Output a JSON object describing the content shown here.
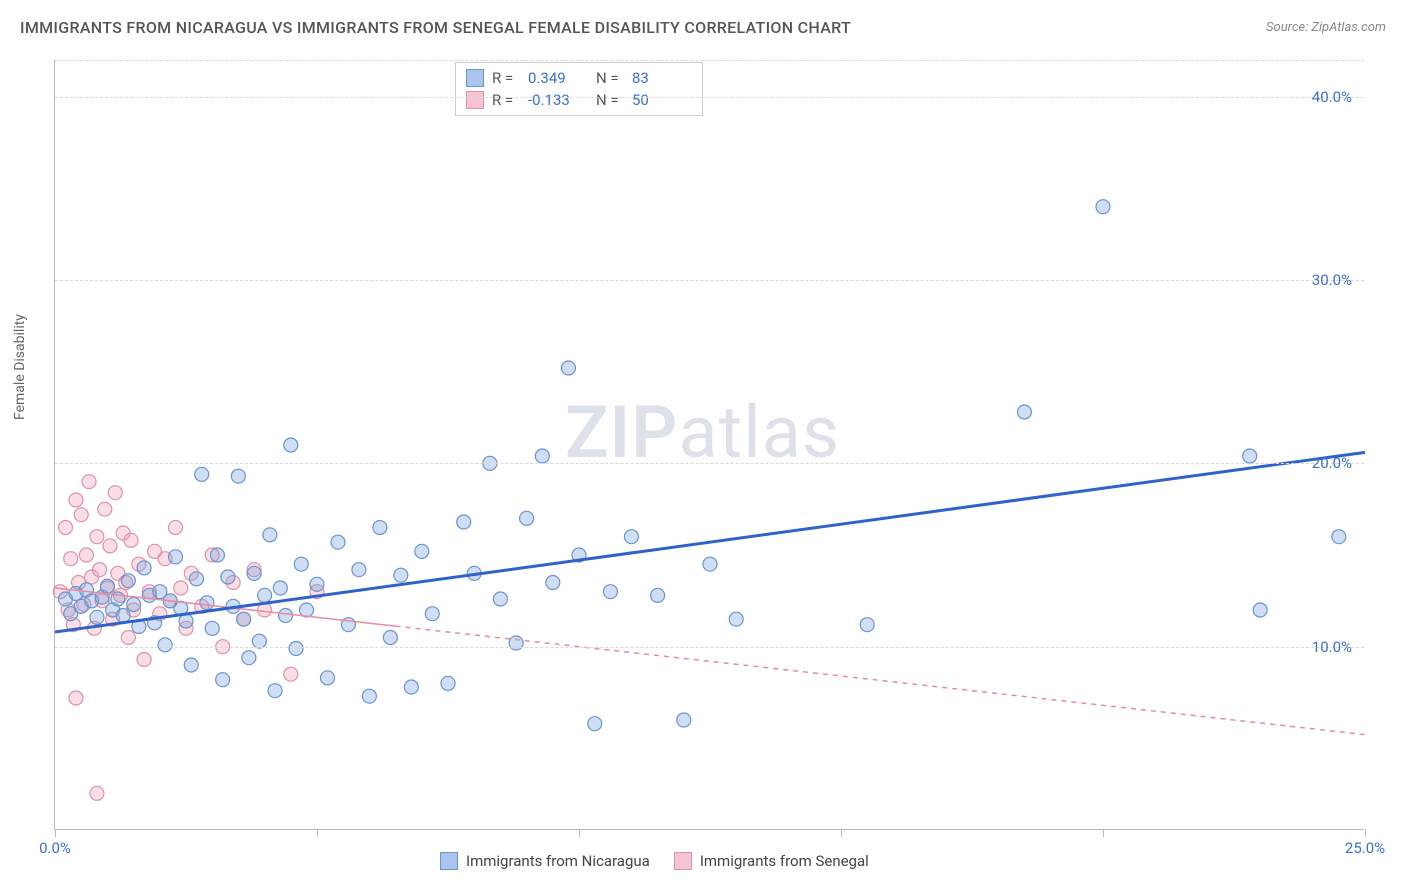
{
  "title": "IMMIGRANTS FROM NICARAGUA VS IMMIGRANTS FROM SENEGAL FEMALE DISABILITY CORRELATION CHART",
  "source": "Source: ZipAtlas.com",
  "y_axis_label": "Female Disability",
  "watermark_bold": "ZIP",
  "watermark_rest": "atlas",
  "chart": {
    "type": "scatter",
    "xlim": [
      0,
      25
    ],
    "ylim": [
      0,
      42
    ],
    "x_ticks": [
      0,
      5,
      10,
      15,
      20,
      25
    ],
    "x_tick_labels": {
      "0": "0.0%",
      "25": "25.0%"
    },
    "y_grid": [
      10,
      20,
      30,
      40
    ],
    "y_tick_labels": {
      "10": "10.0%",
      "20": "20.0%",
      "30": "30.0%",
      "40": "40.0%"
    },
    "background_color": "#ffffff",
    "grid_color": "#d8d8d8",
    "axis_color": "#bbbbbb",
    "marker_radius": 7,
    "marker_stroke_width": 1.2,
    "series": [
      {
        "name": "Immigrants from Nicaragua",
        "fill": "rgba(120,160,220,0.35)",
        "stroke": "#6a94cf",
        "swatch_fill": "#aac4eb",
        "swatch_border": "#6a94cf",
        "r": "0.349",
        "n": "83",
        "trend": {
          "x1": 0,
          "y1": 10.8,
          "x2": 25,
          "y2": 20.6,
          "color": "#2f63c9",
          "width": 3,
          "dash": ""
        },
        "points": [
          [
            0.2,
            12.6
          ],
          [
            0.3,
            11.8
          ],
          [
            0.4,
            12.9
          ],
          [
            0.5,
            12.2
          ],
          [
            0.6,
            13.1
          ],
          [
            0.7,
            12.5
          ],
          [
            0.8,
            11.6
          ],
          [
            0.9,
            12.7
          ],
          [
            1.0,
            13.3
          ],
          [
            1.1,
            12.0
          ],
          [
            1.2,
            12.6
          ],
          [
            1.3,
            11.7
          ],
          [
            1.4,
            13.6
          ],
          [
            1.5,
            12.3
          ],
          [
            1.6,
            11.1
          ],
          [
            1.7,
            14.3
          ],
          [
            1.8,
            12.8
          ],
          [
            1.9,
            11.3
          ],
          [
            2.0,
            13.0
          ],
          [
            2.1,
            10.1
          ],
          [
            2.2,
            12.5
          ],
          [
            2.3,
            14.9
          ],
          [
            2.4,
            12.1
          ],
          [
            2.5,
            11.4
          ],
          [
            2.6,
            9.0
          ],
          [
            2.7,
            13.7
          ],
          [
            2.8,
            19.4
          ],
          [
            2.9,
            12.4
          ],
          [
            3.0,
            11.0
          ],
          [
            3.1,
            15.0
          ],
          [
            3.2,
            8.2
          ],
          [
            3.3,
            13.8
          ],
          [
            3.4,
            12.2
          ],
          [
            3.5,
            19.3
          ],
          [
            3.6,
            11.5
          ],
          [
            3.7,
            9.4
          ],
          [
            3.8,
            14.0
          ],
          [
            3.9,
            10.3
          ],
          [
            4.0,
            12.8
          ],
          [
            4.1,
            16.1
          ],
          [
            4.2,
            7.6
          ],
          [
            4.3,
            13.2
          ],
          [
            4.4,
            11.7
          ],
          [
            4.5,
            21.0
          ],
          [
            4.6,
            9.9
          ],
          [
            4.7,
            14.5
          ],
          [
            4.8,
            12.0
          ],
          [
            5.0,
            13.4
          ],
          [
            5.2,
            8.3
          ],
          [
            5.4,
            15.7
          ],
          [
            5.6,
            11.2
          ],
          [
            5.8,
            14.2
          ],
          [
            6.0,
            7.3
          ],
          [
            6.2,
            16.5
          ],
          [
            6.4,
            10.5
          ],
          [
            6.6,
            13.9
          ],
          [
            6.8,
            7.8
          ],
          [
            7.0,
            15.2
          ],
          [
            7.2,
            11.8
          ],
          [
            7.5,
            8.0
          ],
          [
            7.8,
            16.8
          ],
          [
            8.0,
            14.0
          ],
          [
            8.3,
            20.0
          ],
          [
            8.5,
            12.6
          ],
          [
            8.8,
            10.2
          ],
          [
            9.0,
            17.0
          ],
          [
            9.3,
            20.4
          ],
          [
            9.5,
            13.5
          ],
          [
            9.8,
            25.2
          ],
          [
            10.0,
            15.0
          ],
          [
            10.3,
            5.8
          ],
          [
            10.6,
            13.0
          ],
          [
            11.0,
            16.0
          ],
          [
            11.5,
            12.8
          ],
          [
            12.0,
            6.0
          ],
          [
            12.5,
            14.5
          ],
          [
            13.0,
            11.5
          ],
          [
            15.5,
            11.2
          ],
          [
            18.5,
            22.8
          ],
          [
            20.0,
            34.0
          ],
          [
            22.8,
            20.4
          ],
          [
            23.0,
            12.0
          ],
          [
            24.5,
            16.0
          ]
        ]
      },
      {
        "name": "Immigrants from Senegal",
        "fill": "rgba(240,160,180,0.35)",
        "stroke": "#e091a6",
        "swatch_fill": "#f6c3d0",
        "swatch_border": "#e091a6",
        "r": "-0.133",
        "n": "50",
        "trend": {
          "x1": 0,
          "y1": 13.2,
          "x2": 25,
          "y2": 5.2,
          "color": "#e88aa0",
          "width": 1.5,
          "dash": "",
          "dash_after_x": 6.5,
          "dash_pattern": "5,5"
        },
        "points": [
          [
            0.1,
            13.0
          ],
          [
            0.2,
            16.5
          ],
          [
            0.25,
            12.0
          ],
          [
            0.3,
            14.8
          ],
          [
            0.35,
            11.2
          ],
          [
            0.4,
            18.0
          ],
          [
            0.45,
            13.5
          ],
          [
            0.5,
            17.2
          ],
          [
            0.55,
            12.3
          ],
          [
            0.6,
            15.0
          ],
          [
            0.65,
            19.0
          ],
          [
            0.7,
            13.8
          ],
          [
            0.75,
            11.0
          ],
          [
            0.8,
            16.0
          ],
          [
            0.85,
            14.2
          ],
          [
            0.9,
            12.5
          ],
          [
            0.95,
            17.5
          ],
          [
            1.0,
            13.2
          ],
          [
            1.05,
            15.5
          ],
          [
            1.1,
            11.5
          ],
          [
            1.15,
            18.4
          ],
          [
            1.2,
            14.0
          ],
          [
            1.25,
            12.8
          ],
          [
            1.3,
            16.2
          ],
          [
            1.35,
            13.5
          ],
          [
            1.4,
            10.5
          ],
          [
            1.45,
            15.8
          ],
          [
            1.5,
            12.0
          ],
          [
            1.6,
            14.5
          ],
          [
            1.7,
            9.3
          ],
          [
            1.8,
            13.0
          ],
          [
            1.9,
            15.2
          ],
          [
            2.0,
            11.8
          ],
          [
            2.1,
            14.8
          ],
          [
            2.2,
            12.5
          ],
          [
            2.3,
            16.5
          ],
          [
            2.4,
            13.2
          ],
          [
            2.5,
            11.0
          ],
          [
            2.6,
            14.0
          ],
          [
            2.8,
            12.2
          ],
          [
            3.0,
            15.0
          ],
          [
            3.2,
            10.0
          ],
          [
            3.4,
            13.5
          ],
          [
            3.6,
            11.5
          ],
          [
            3.8,
            14.2
          ],
          [
            4.0,
            12.0
          ],
          [
            4.5,
            8.5
          ],
          [
            5.0,
            13.0
          ],
          [
            0.8,
            2.0
          ],
          [
            0.4,
            7.2
          ]
        ]
      }
    ]
  },
  "legend_bottom": {
    "series1": "Immigrants from Nicaragua",
    "series2": "Immigrants from Senegal"
  }
}
